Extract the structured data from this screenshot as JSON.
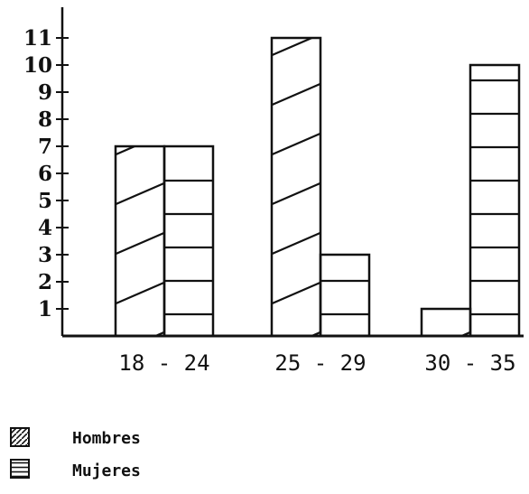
{
  "chart_data": {
    "type": "bar",
    "categories": [
      "18 - 24",
      "25 - 29",
      "30 - 35"
    ],
    "series": [
      {
        "name": "Hombres",
        "values": [
          7,
          11,
          1
        ],
        "pattern": "diagonal-hatch"
      },
      {
        "name": "Mujeres",
        "values": [
          7,
          3,
          10
        ],
        "pattern": "horizontal-lines"
      }
    ],
    "yticks": [
      "1",
      "2",
      "3",
      "4",
      "5",
      "6",
      "7",
      "8",
      "9",
      "10",
      "11"
    ],
    "ylim": [
      0,
      11
    ],
    "grid": false,
    "legend_position": "bottom-left",
    "color": "#111111"
  }
}
